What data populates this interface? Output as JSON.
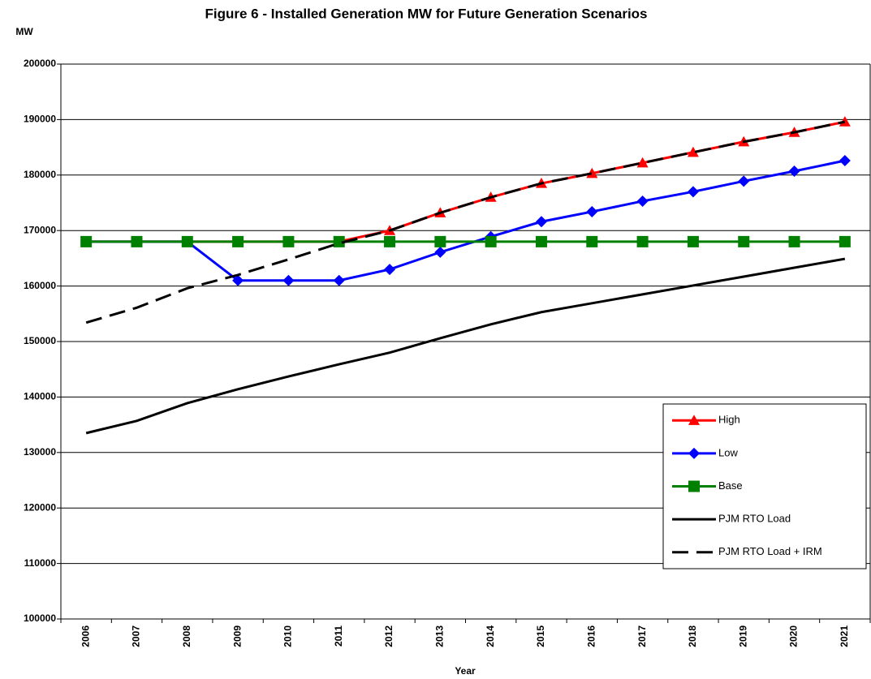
{
  "chart_data": {
    "type": "line",
    "title": "Figure 6 - Installed Generation MW for Future Generation Scenarios",
    "y_label": "MW",
    "x_label": "Year",
    "categories": [
      "2006",
      "2007",
      "2008",
      "2009",
      "2010",
      "2011",
      "2012",
      "2013",
      "2014",
      "2015",
      "2016",
      "2017",
      "2018",
      "2019",
      "2020",
      "2021"
    ],
    "series": [
      {
        "name": "High",
        "color": "#ff0000",
        "marker": "triangle",
        "dashed": false,
        "values": [
          168000,
          168000,
          168000,
          168000,
          168000,
          168000,
          170000,
          173200,
          176000,
          178500,
          180300,
          182200,
          184100,
          186000,
          187700,
          189600
        ]
      },
      {
        "name": "Low",
        "color": "#0000ff",
        "marker": "diamond",
        "dashed": false,
        "values": [
          168000,
          168000,
          168000,
          161000,
          161000,
          161000,
          163000,
          166100,
          168900,
          171600,
          173400,
          175300,
          177000,
          178900,
          180700,
          182600
        ]
      },
      {
        "name": "Base",
        "color": "#008000",
        "marker": "square",
        "dashed": false,
        "values": [
          168000,
          168000,
          168000,
          168000,
          168000,
          168000,
          168000,
          168000,
          168000,
          168000,
          168000,
          168000,
          168000,
          168000,
          168000,
          168000
        ]
      },
      {
        "name": "PJM RTO Load",
        "color": "#000000",
        "marker": "none",
        "dashed": false,
        "values": [
          133500,
          135700,
          138900,
          141400,
          143700,
          145900,
          148000,
          150600,
          153100,
          155300,
          156900,
          158500,
          160100,
          161700,
          163300,
          164900
        ]
      },
      {
        "name": "PJM RTO Load + IRM",
        "color": "#000000",
        "marker": "none",
        "dashed": true,
        "values": [
          153400,
          156100,
          159600,
          162000,
          164800,
          167700,
          170000,
          173200,
          176000,
          178500,
          180300,
          182200,
          184100,
          186000,
          187700,
          189600
        ]
      }
    ],
    "ylim": [
      100000,
      200000
    ],
    "yticks": [
      100000,
      110000,
      120000,
      130000,
      140000,
      150000,
      160000,
      170000,
      180000,
      190000,
      200000
    ],
    "grid": true,
    "legend_position": "lower right"
  }
}
